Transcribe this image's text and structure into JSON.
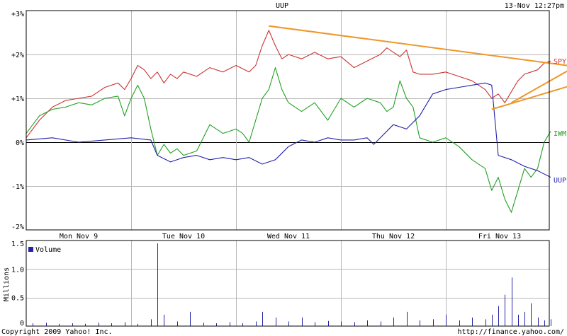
{
  "chart_data": {
    "type": "line",
    "title": "UUP",
    "timestamp": "13-Nov 12:27pm",
    "copyright": "Copyright 2009 Yahoo! Inc.",
    "source_url": "http://finance.yahoo.com/",
    "x_labels": [
      "Mon Nov  9",
      "Tue Nov 10",
      "Wed Nov 11",
      "Thu Nov 12",
      "Fri Nov 13"
    ],
    "main": {
      "y_ticks": [
        "+3%",
        "+2%",
        "+1%",
        "0%",
        "-1%",
        "-2%"
      ],
      "ylim": [
        -2,
        3
      ],
      "grid": true,
      "series": [
        {
          "name": "SPY",
          "color": "#cc3333",
          "values": [
            [
              0,
              0.1
            ],
            [
              0.5,
              0.5
            ],
            [
              1,
              0.8
            ],
            [
              1.5,
              0.95
            ],
            [
              2,
              1.0
            ],
            [
              2.5,
              1.05
            ],
            [
              3,
              1.25
            ],
            [
              3.5,
              1.35
            ],
            [
              3.75,
              1.2
            ],
            [
              4,
              1.45
            ],
            [
              4.25,
              1.75
            ],
            [
              4.5,
              1.65
            ],
            [
              4.75,
              1.45
            ],
            [
              5,
              1.6
            ],
            [
              5.25,
              1.35
            ],
            [
              5.5,
              1.55
            ],
            [
              5.75,
              1.45
            ],
            [
              6,
              1.6
            ],
            [
              6.5,
              1.5
            ],
            [
              7,
              1.7
            ],
            [
              7.5,
              1.6
            ],
            [
              8,
              1.75
            ],
            [
              8.5,
              1.6
            ],
            [
              8.75,
              1.75
            ],
            [
              9,
              2.2
            ],
            [
              9.25,
              2.55
            ],
            [
              9.5,
              2.2
            ],
            [
              9.75,
              1.9
            ],
            [
              10,
              2.0
            ],
            [
              10.5,
              1.9
            ],
            [
              11,
              2.05
            ],
            [
              11.5,
              1.9
            ],
            [
              12,
              1.95
            ],
            [
              12.5,
              1.7
            ],
            [
              13,
              1.85
            ],
            [
              13.5,
              2.0
            ],
            [
              13.75,
              2.15
            ],
            [
              14,
              2.05
            ],
            [
              14.25,
              1.95
            ],
            [
              14.5,
              2.1
            ],
            [
              14.75,
              1.6
            ],
            [
              15,
              1.55
            ],
            [
              15.5,
              1.55
            ],
            [
              16,
              1.6
            ],
            [
              16.5,
              1.5
            ],
            [
              17,
              1.4
            ],
            [
              17.5,
              1.2
            ],
            [
              17.75,
              1.0
            ],
            [
              18,
              1.1
            ],
            [
              18.25,
              0.9
            ],
            [
              18.5,
              1.15
            ],
            [
              18.75,
              1.4
            ],
            [
              19,
              1.55
            ],
            [
              19.25,
              1.6
            ],
            [
              19.5,
              1.65
            ],
            [
              19.75,
              1.8
            ],
            [
              20,
              1.85
            ]
          ]
        },
        {
          "name": "IWM",
          "color": "#22a022",
          "values": [
            [
              0,
              0.2
            ],
            [
              0.5,
              0.6
            ],
            [
              1,
              0.75
            ],
            [
              1.5,
              0.8
            ],
            [
              2,
              0.9
            ],
            [
              2.5,
              0.85
            ],
            [
              3,
              1.0
            ],
            [
              3.5,
              1.05
            ],
            [
              3.75,
              0.6
            ],
            [
              4,
              1.0
            ],
            [
              4.25,
              1.3
            ],
            [
              4.5,
              1.0
            ],
            [
              4.75,
              0.3
            ],
            [
              5,
              -0.3
            ],
            [
              5.25,
              -0.05
            ],
            [
              5.5,
              -0.25
            ],
            [
              5.75,
              -0.15
            ],
            [
              6,
              -0.3
            ],
            [
              6.5,
              -0.2
            ],
            [
              7,
              0.4
            ],
            [
              7.5,
              0.2
            ],
            [
              8,
              0.3
            ],
            [
              8.25,
              0.2
            ],
            [
              8.5,
              0.0
            ],
            [
              9,
              1.0
            ],
            [
              9.25,
              1.2
            ],
            [
              9.5,
              1.7
            ],
            [
              9.75,
              1.2
            ],
            [
              10,
              0.9
            ],
            [
              10.5,
              0.7
            ],
            [
              11,
              0.9
            ],
            [
              11.5,
              0.5
            ],
            [
              12,
              1.0
            ],
            [
              12.5,
              0.8
            ],
            [
              13,
              1.0
            ],
            [
              13.5,
              0.9
            ],
            [
              13.75,
              0.7
            ],
            [
              14,
              0.8
            ],
            [
              14.25,
              1.4
            ],
            [
              14.5,
              1.0
            ],
            [
              14.75,
              0.8
            ],
            [
              15,
              0.1
            ],
            [
              15.5,
              0.0
            ],
            [
              16,
              0.1
            ],
            [
              16.5,
              -0.1
            ],
            [
              17,
              -0.4
            ],
            [
              17.5,
              -0.6
            ],
            [
              17.75,
              -1.1
            ],
            [
              18,
              -0.8
            ],
            [
              18.25,
              -1.3
            ],
            [
              18.5,
              -1.6
            ],
            [
              18.75,
              -1.1
            ],
            [
              19,
              -0.6
            ],
            [
              19.25,
              -0.8
            ],
            [
              19.5,
              -0.6
            ],
            [
              19.75,
              0.0
            ],
            [
              20,
              0.25
            ]
          ]
        },
        {
          "name": "UUP",
          "color": "#2222aa",
          "values": [
            [
              0,
              0.05
            ],
            [
              1,
              0.1
            ],
            [
              2,
              0.0
            ],
            [
              3,
              0.05
            ],
            [
              4,
              0.1
            ],
            [
              4.75,
              0.05
            ],
            [
              5,
              -0.3
            ],
            [
              5.5,
              -0.45
            ],
            [
              6,
              -0.35
            ],
            [
              6.5,
              -0.3
            ],
            [
              7,
              -0.4
            ],
            [
              7.5,
              -0.35
            ],
            [
              8,
              -0.4
            ],
            [
              8.5,
              -0.35
            ],
            [
              9,
              -0.5
            ],
            [
              9.5,
              -0.4
            ],
            [
              10,
              -0.1
            ],
            [
              10.5,
              0.05
            ],
            [
              11,
              0.0
            ],
            [
              11.5,
              0.1
            ],
            [
              12,
              0.05
            ],
            [
              12.5,
              0.05
            ],
            [
              13,
              0.1
            ],
            [
              13.25,
              -0.05
            ],
            [
              14,
              0.4
            ],
            [
              14.5,
              0.3
            ],
            [
              15,
              0.6
            ],
            [
              15.5,
              1.1
            ],
            [
              16,
              1.2
            ],
            [
              16.5,
              1.25
            ],
            [
              17,
              1.3
            ],
            [
              17.5,
              1.35
            ],
            [
              17.75,
              1.3
            ],
            [
              18,
              -0.3
            ],
            [
              18.5,
              -0.4
            ],
            [
              19,
              -0.55
            ],
            [
              19.5,
              -0.65
            ],
            [
              20,
              -0.8
            ]
          ]
        }
      ],
      "trendlines": [
        {
          "color": "#f0962a",
          "from": [
            9.25,
            2.65
          ],
          "to": [
            22.5,
            1.6
          ]
        },
        {
          "color": "#f0962a",
          "from": [
            17.75,
            0.75
          ],
          "to": [
            22.5,
            1.6
          ]
        },
        {
          "color": "#f0962a",
          "from": [
            18.5,
            0.9
          ],
          "to": [
            21.75,
            2.0
          ]
        }
      ]
    },
    "volume": {
      "legend": "Volume",
      "ylabel": "Millions",
      "y_ticks": [
        "1.5",
        "1.0",
        "0.5",
        "0"
      ],
      "ylim": [
        0,
        1.5
      ],
      "color": "#2222aa",
      "values": [
        [
          0.25,
          0.05
        ],
        [
          0.75,
          0.06
        ],
        [
          1.25,
          0.04
        ],
        [
          1.75,
          0.05
        ],
        [
          2.25,
          0.04
        ],
        [
          2.75,
          0.06
        ],
        [
          3.25,
          0.05
        ],
        [
          3.75,
          0.07
        ],
        [
          4.25,
          0.04
        ],
        [
          4.75,
          0.12
        ],
        [
          5.0,
          1.45
        ],
        [
          5.25,
          0.2
        ],
        [
          5.75,
          0.08
        ],
        [
          6.25,
          0.25
        ],
        [
          6.75,
          0.06
        ],
        [
          7.25,
          0.05
        ],
        [
          7.75,
          0.07
        ],
        [
          8.25,
          0.05
        ],
        [
          8.75,
          0.08
        ],
        [
          9.0,
          0.25
        ],
        [
          9.5,
          0.15
        ],
        [
          10.0,
          0.08
        ],
        [
          10.5,
          0.15
        ],
        [
          11.0,
          0.07
        ],
        [
          11.5,
          0.09
        ],
        [
          12.0,
          0.08
        ],
        [
          12.5,
          0.07
        ],
        [
          13.0,
          0.1
        ],
        [
          13.5,
          0.08
        ],
        [
          14.0,
          0.15
        ],
        [
          14.5,
          0.25
        ],
        [
          15.0,
          0.1
        ],
        [
          15.5,
          0.12
        ],
        [
          16.0,
          0.2
        ],
        [
          16.5,
          0.1
        ],
        [
          17.0,
          0.15
        ],
        [
          17.5,
          0.12
        ],
        [
          17.75,
          0.2
        ],
        [
          18.0,
          0.35
        ],
        [
          18.25,
          0.55
        ],
        [
          18.5,
          0.85
        ],
        [
          18.75,
          0.2
        ],
        [
          19.0,
          0.25
        ],
        [
          19.25,
          0.4
        ],
        [
          19.5,
          0.15
        ],
        [
          19.75,
          0.1
        ],
        [
          20.0,
          0.12
        ]
      ]
    }
  }
}
